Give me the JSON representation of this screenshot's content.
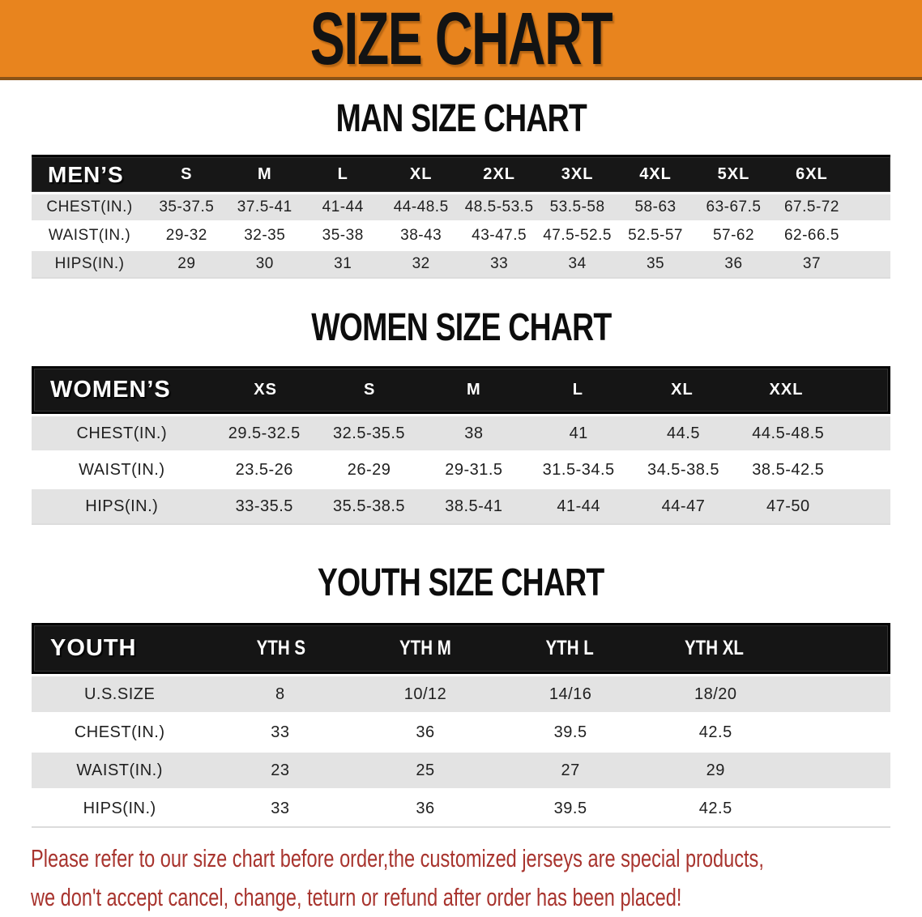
{
  "banner": {
    "title": "SIZE CHART",
    "bg_color": "#E8841E"
  },
  "sections": [
    {
      "id": "men",
      "heading": "MAN SIZE CHART",
      "table": {
        "header_label": "MEN’S",
        "size_columns": [
          "S",
          "M",
          "L",
          "XL",
          "2XL",
          "3XL",
          "4XL",
          "5XL",
          "6XL"
        ],
        "rows": [
          {
            "label": "CHEST(IN.)",
            "values": [
              "35-37.5",
              "37.5-41",
              "41-44",
              "44-48.5",
              "48.5-53.5",
              "53.5-58",
              "58-63",
              "63-67.5",
              "67.5-72"
            ]
          },
          {
            "label": "WAIST(IN.)",
            "values": [
              "29-32",
              "32-35",
              "35-38",
              "38-43",
              "43-47.5",
              "47.5-52.5",
              "52.5-57",
              "57-62",
              "62-66.5"
            ]
          },
          {
            "label": "HIPS(IN.)",
            "values": [
              "29",
              "30",
              "31",
              "32",
              "33",
              "34",
              "35",
              "36",
              "37"
            ]
          }
        ]
      }
    },
    {
      "id": "women",
      "heading": "WOMEN SIZE CHART",
      "table": {
        "header_label": "WOMEN’S",
        "size_columns": [
          "XS",
          "S",
          "M",
          "L",
          "XL",
          "XXL"
        ],
        "rows": [
          {
            "label": "CHEST(IN.)",
            "values": [
              "29.5-32.5",
              "32.5-35.5",
              "38",
              "41",
              "44.5",
              "44.5-48.5"
            ]
          },
          {
            "label": "WAIST(IN.)",
            "values": [
              "23.5-26",
              "26-29",
              "29-31.5",
              "31.5-34.5",
              "34.5-38.5",
              "38.5-42.5"
            ]
          },
          {
            "label": "HIPS(IN.)",
            "values": [
              "33-35.5",
              "35.5-38.5",
              "38.5-41",
              "41-44",
              "44-47",
              "47-50"
            ]
          }
        ]
      }
    },
    {
      "id": "youth",
      "heading": "YOUTH SIZE CHART",
      "table": {
        "header_label": "YOUTH",
        "size_columns": [
          "YTH S",
          "YTH M",
          "YTH L",
          "YTH XL"
        ],
        "rows": [
          {
            "label": "U.S.SIZE",
            "values": [
              "8",
              "10/12",
              "14/16",
              "18/20"
            ]
          },
          {
            "label": "CHEST(IN.)",
            "values": [
              "33",
              "36",
              "39.5",
              "42.5"
            ]
          },
          {
            "label": "WAIST(IN.)",
            "values": [
              "23",
              "25",
              "27",
              "29"
            ]
          },
          {
            "label": "HIPS(IN.)",
            "values": [
              "33",
              "36",
              "39.5",
              "42.5"
            ]
          }
        ]
      }
    }
  ],
  "footer": {
    "line1": "Please refer to our size chart before order,the customized jerseys are special products,",
    "line2": "we don't accept cancel, change, teturn or refund after order has been placed!",
    "text_color": "#A8342E"
  }
}
